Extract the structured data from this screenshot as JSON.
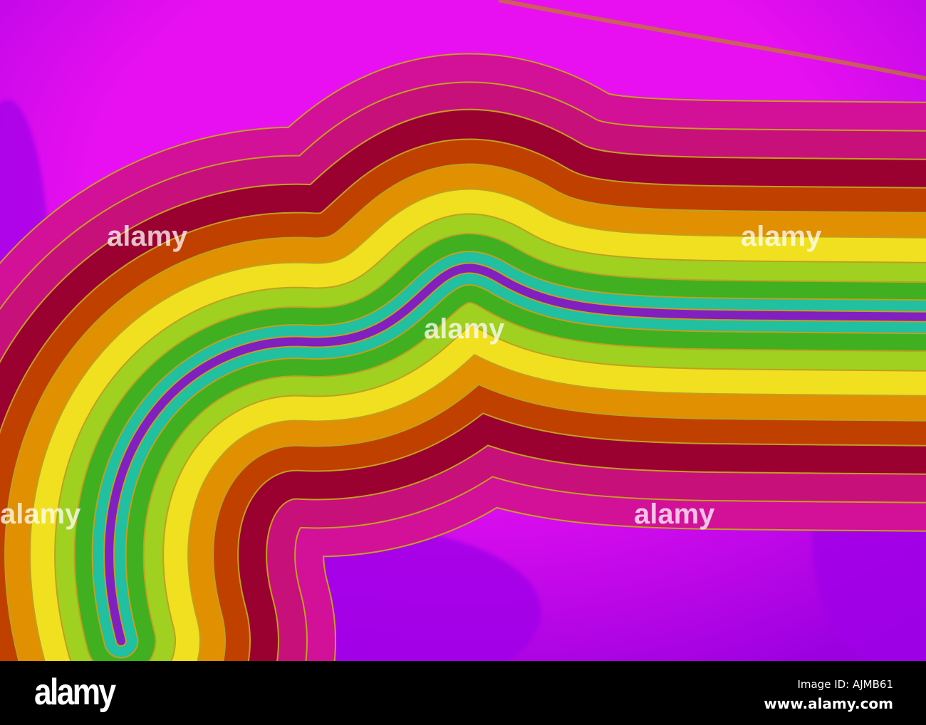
{
  "image": {
    "description_colors": [
      "#e010f0",
      "#9a00e0",
      "#c8107a",
      "#9a0030",
      "#c04000",
      "#e09000",
      "#f0e020",
      "#60c020",
      "#20c0a0",
      "#8020c0"
    ]
  },
  "watermark": {
    "text": "alamy"
  },
  "footer": {
    "logo": "alamy",
    "image_id": "Image ID: AJMB61",
    "website": "www.alamy.com"
  }
}
